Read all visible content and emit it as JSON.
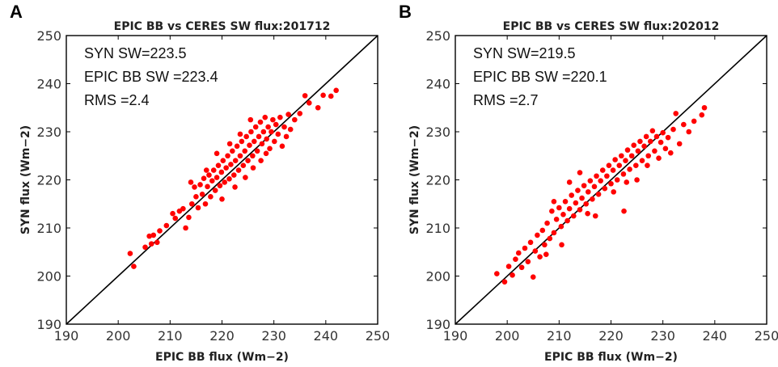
{
  "chart_data": [
    {
      "panel_letter": "A",
      "type": "scatter",
      "title": "EPIC BB vs CERES SW flux:201712",
      "xlabel": "EPIC BB flux (Wm−2)",
      "ylabel": "SYN flux (Wm−2)",
      "xlim": [
        190,
        250
      ],
      "ylim": [
        190,
        250
      ],
      "xticks": [
        190,
        200,
        210,
        220,
        230,
        240,
        250
      ],
      "yticks": [
        190,
        200,
        210,
        220,
        230,
        240,
        250
      ],
      "annotations": [
        "SYN SW=223.5",
        "EPIC BB SW =223.4",
        "RMS =2.4"
      ],
      "reference_line": {
        "from": [
          190,
          190
        ],
        "to": [
          250,
          250
        ]
      },
      "marker_color": "#ff0000",
      "line_color": "#000000",
      "points": [
        [
          202.3,
          204.7
        ],
        [
          203.0,
          202.0
        ],
        [
          205.2,
          206.0
        ],
        [
          206.0,
          208.3
        ],
        [
          206.4,
          206.7
        ],
        [
          206.8,
          208.5
        ],
        [
          207.5,
          207.0
        ],
        [
          208.0,
          209.4
        ],
        [
          209.3,
          210.5
        ],
        [
          210.5,
          213.0
        ],
        [
          211.0,
          212.0
        ],
        [
          211.8,
          213.5
        ],
        [
          212.5,
          214.0
        ],
        [
          213.0,
          210.0
        ],
        [
          213.6,
          212.2
        ],
        [
          214.2,
          215.0
        ],
        [
          214.7,
          218.5
        ],
        [
          215.0,
          216.5
        ],
        [
          215.4,
          214.2
        ],
        [
          215.8,
          219.0
        ],
        [
          216.2,
          217.0
        ],
        [
          216.5,
          220.3
        ],
        [
          216.8,
          215.0
        ],
        [
          217.2,
          218.6
        ],
        [
          217.5,
          221.0
        ],
        [
          217.8,
          216.5
        ],
        [
          218.1,
          219.8
        ],
        [
          218.4,
          222.0
        ],
        [
          218.7,
          217.8
        ],
        [
          219.0,
          220.5
        ],
        [
          219.3,
          223.0
        ],
        [
          219.6,
          218.8
        ],
        [
          219.9,
          221.6
        ],
        [
          220.2,
          224.0
        ],
        [
          220.5,
          219.5
        ],
        [
          220.8,
          222.5
        ],
        [
          221.1,
          225.0
        ],
        [
          221.4,
          220.2
        ],
        [
          221.7,
          223.2
        ],
        [
          222.0,
          226.0
        ],
        [
          222.3,
          221.0
        ],
        [
          222.6,
          224.0
        ],
        [
          222.9,
          227.0
        ],
        [
          223.2,
          222.0
        ],
        [
          223.5,
          225.0
        ],
        [
          223.8,
          228.0
        ],
        [
          224.1,
          223.0
        ],
        [
          224.4,
          226.0
        ],
        [
          224.7,
          229.0
        ],
        [
          225.0,
          224.0
        ],
        [
          225.3,
          227.2
        ],
        [
          225.6,
          230.0
        ],
        [
          225.9,
          225.0
        ],
        [
          226.2,
          228.0
        ],
        [
          226.5,
          231.0
        ],
        [
          226.8,
          226.0
        ],
        [
          227.1,
          229.0
        ],
        [
          227.4,
          232.0
        ],
        [
          227.7,
          227.5
        ],
        [
          228.0,
          230.0
        ],
        [
          228.3,
          233.0
        ],
        [
          228.6,
          228.5
        ],
        [
          228.9,
          231.0
        ],
        [
          229.2,
          226.5
        ],
        [
          229.5,
          230.0
        ],
        [
          229.8,
          232.5
        ],
        [
          230.1,
          228.0
        ],
        [
          230.4,
          231.5
        ],
        [
          230.8,
          229.5
        ],
        [
          231.2,
          233.0
        ],
        [
          231.6,
          227.0
        ],
        [
          232.0,
          231.0
        ],
        [
          232.4,
          229.0
        ],
        [
          232.8,
          233.6
        ],
        [
          233.2,
          230.5
        ],
        [
          234.0,
          232.5
        ],
        [
          235.0,
          233.8
        ],
        [
          236.0,
          237.5
        ],
        [
          236.8,
          236.0
        ],
        [
          238.5,
          235.0
        ],
        [
          239.5,
          237.6
        ],
        [
          241.0,
          237.4
        ],
        [
          242.0,
          238.6
        ],
        [
          222.5,
          218.5
        ],
        [
          224.5,
          220.5
        ],
        [
          226.0,
          222.5
        ],
        [
          220.0,
          216.0
        ],
        [
          221.5,
          227.5
        ],
        [
          223.5,
          229.5
        ],
        [
          219.0,
          225.5
        ],
        [
          227.5,
          224.0
        ],
        [
          228.5,
          225.5
        ],
        [
          217.0,
          222.0
        ],
        [
          214.0,
          219.5
        ],
        [
          225.5,
          232.5
        ]
      ]
    },
    {
      "panel_letter": "B",
      "type": "scatter",
      "title": "EPIC BB vs CERES SW flux:202012",
      "xlabel": "EPIC BB flux (Wm−2)",
      "ylabel": "SYN flux (Wm−2)",
      "xlim": [
        190,
        250
      ],
      "ylim": [
        190,
        250
      ],
      "xticks": [
        190,
        200,
        210,
        220,
        230,
        240,
        250
      ],
      "yticks": [
        190,
        200,
        210,
        220,
        230,
        240,
        250
      ],
      "annotations": [
        "SYN SW=219.5",
        "EPIC BB SW =220.1",
        "RMS =2.7"
      ],
      "reference_line": {
        "from": [
          190,
          190
        ],
        "to": [
          250,
          250
        ]
      },
      "marker_color": "#ff0000",
      "line_color": "#000000",
      "points": [
        [
          198.0,
          200.5
        ],
        [
          199.5,
          198.8
        ],
        [
          200.3,
          202.0
        ],
        [
          201.0,
          200.2
        ],
        [
          201.6,
          203.5
        ],
        [
          202.2,
          204.8
        ],
        [
          202.8,
          201.8
        ],
        [
          203.4,
          205.8
        ],
        [
          204.0,
          203.0
        ],
        [
          204.5,
          207.0
        ],
        [
          205.0,
          199.8
        ],
        [
          205.4,
          205.2
        ],
        [
          205.8,
          208.5
        ],
        [
          206.3,
          204.0
        ],
        [
          206.8,
          209.5
        ],
        [
          207.2,
          206.5
        ],
        [
          207.7,
          211.0
        ],
        [
          208.2,
          207.8
        ],
        [
          208.6,
          213.5
        ],
        [
          209.0,
          209.0
        ],
        [
          209.5,
          211.8
        ],
        [
          210.0,
          214.2
        ],
        [
          210.4,
          210.3
        ],
        [
          210.8,
          212.8
        ],
        [
          211.2,
          215.5
        ],
        [
          211.6,
          211.5
        ],
        [
          212.0,
          214.0
        ],
        [
          212.4,
          216.8
        ],
        [
          212.8,
          212.5
        ],
        [
          213.2,
          215.2
        ],
        [
          213.6,
          217.8
        ],
        [
          214.0,
          213.8
        ],
        [
          214.4,
          216.2
        ],
        [
          214.8,
          218.8
        ],
        [
          215.2,
          215.0
        ],
        [
          215.6,
          217.5
        ],
        [
          216.0,
          219.8
        ],
        [
          216.4,
          216.0
        ],
        [
          216.8,
          218.6
        ],
        [
          217.2,
          220.8
        ],
        [
          217.6,
          217.0
        ],
        [
          218.0,
          219.8
        ],
        [
          218.4,
          222.0
        ],
        [
          218.8,
          218.2
        ],
        [
          219.2,
          220.8
        ],
        [
          219.6,
          223.0
        ],
        [
          220.0,
          219.2
        ],
        [
          220.4,
          222.0
        ],
        [
          220.8,
          224.2
        ],
        [
          221.2,
          220.0
        ],
        [
          221.6,
          223.0
        ],
        [
          222.0,
          225.0
        ],
        [
          222.4,
          221.2
        ],
        [
          222.8,
          224.0
        ],
        [
          223.2,
          226.2
        ],
        [
          223.6,
          222.2
        ],
        [
          224.0,
          225.0
        ],
        [
          224.4,
          227.2
        ],
        [
          224.8,
          223.0
        ],
        [
          225.2,
          226.0
        ],
        [
          225.6,
          228.0
        ],
        [
          226.0,
          224.0
        ],
        [
          226.4,
          227.0
        ],
        [
          226.8,
          229.0
        ],
        [
          227.2,
          225.0
        ],
        [
          227.6,
          228.0
        ],
        [
          228.0,
          230.2
        ],
        [
          228.4,
          226.0
        ],
        [
          228.8,
          229.0
        ],
        [
          229.2,
          224.5
        ],
        [
          229.6,
          227.8
        ],
        [
          230.0,
          229.8
        ],
        [
          230.5,
          226.5
        ],
        [
          231.0,
          228.8
        ],
        [
          231.5,
          225.6
        ],
        [
          232.0,
          230.5
        ],
        [
          232.5,
          233.8
        ],
        [
          233.2,
          227.5
        ],
        [
          234.0,
          231.5
        ],
        [
          235.0,
          230.0
        ],
        [
          236.0,
          232.2
        ],
        [
          237.5,
          233.5
        ],
        [
          238.0,
          235.0
        ],
        [
          222.5,
          213.5
        ],
        [
          225.0,
          220.0
        ],
        [
          217.0,
          212.5
        ],
        [
          207.5,
          204.5
        ],
        [
          210.5,
          206.5
        ],
        [
          212.0,
          219.5
        ],
        [
          214.0,
          221.5
        ],
        [
          220.5,
          217.5
        ],
        [
          227.0,
          223.0
        ],
        [
          223.0,
          219.5
        ],
        [
          215.5,
          213.0
        ],
        [
          209.0,
          215.5
        ]
      ]
    }
  ]
}
